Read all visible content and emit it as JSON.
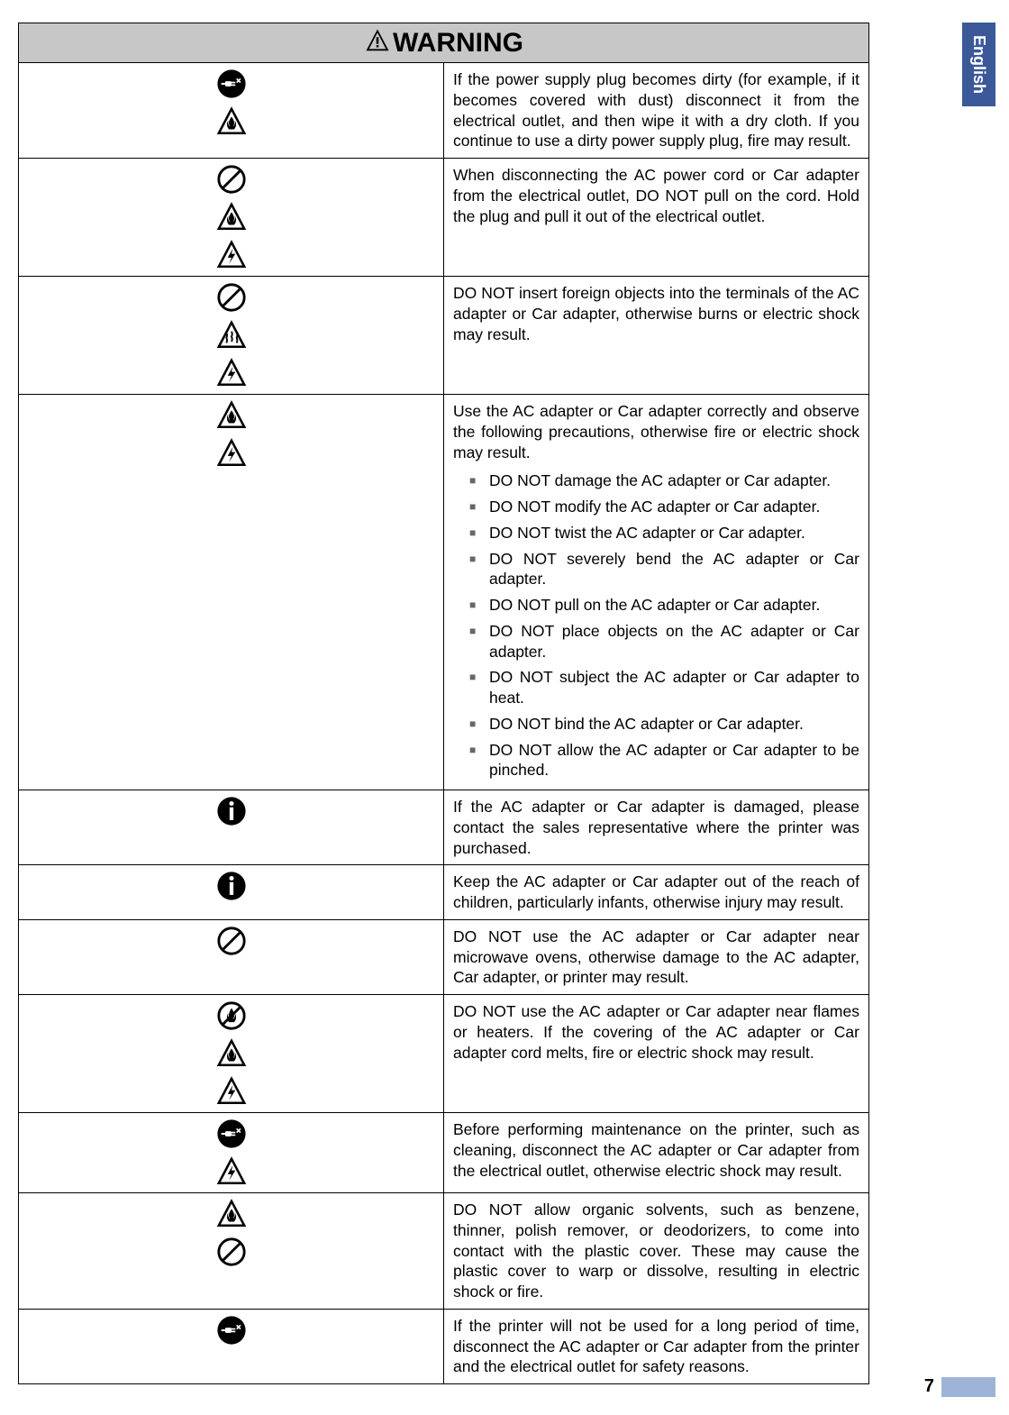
{
  "language": "English",
  "header": {
    "title": "WARNING"
  },
  "page_number": "7",
  "rows": [
    {
      "icons": [
        "unplug",
        "fire-tri"
      ],
      "text": "If the power supply plug becomes dirty (for example, if it becomes covered with dust) disconnect it from the electrical outlet, and then wipe it with a dry cloth. If you continue to use a dirty power supply plug, fire may result."
    },
    {
      "icons": [
        "prohibit",
        "fire-tri",
        "shock-tri"
      ],
      "text": "When disconnecting the AC power cord or Car adapter from the electrical outlet, DO NOT pull on the cord. Hold the plug and pull it out of the electrical outlet."
    },
    {
      "icons": [
        "prohibit",
        "heat-tri",
        "shock-tri"
      ],
      "text": "DO NOT insert foreign objects into the terminals of the AC adapter or Car adapter, otherwise burns or electric shock may result."
    },
    {
      "icons": [
        "fire-tri",
        "shock-tri"
      ],
      "text": "Use the AC adapter or Car adapter correctly and observe the following precautions, otherwise fire or electric shock may result.",
      "bullets": [
        "DO NOT damage the AC adapter or Car adapter.",
        "DO NOT modify the AC adapter or Car adapter.",
        "DO NOT twist the AC adapter or Car adapter.",
        "DO NOT severely bend the AC adapter or Car adapter.",
        "DO NOT pull on the AC adapter or Car adapter.",
        "DO NOT place objects on the AC adapter or Car adapter.",
        "DO NOT subject the AC adapter or Car adapter to heat.",
        "DO NOT bind the AC adapter or Car adapter.",
        "DO NOT allow the AC adapter or Car adapter to be pinched."
      ]
    },
    {
      "icons": [
        "mandatory"
      ],
      "text": "If the AC adapter or Car adapter is damaged, please contact the sales representative where the printer was purchased."
    },
    {
      "icons": [
        "mandatory"
      ],
      "text": "Keep the AC adapter or Car adapter out of the reach of children, particularly infants, otherwise injury may result."
    },
    {
      "icons": [
        "prohibit"
      ],
      "text": "DO NOT use the AC adapter or Car adapter near microwave ovens, otherwise damage to the AC adapter, Car adapter, or printer may result."
    },
    {
      "icons": [
        "no-flame",
        "fire-tri",
        "shock-tri"
      ],
      "text": "DO NOT use the AC adapter or Car adapter near flames or heaters. If the covering of the AC adapter or Car adapter cord melts, fire or electric shock may result."
    },
    {
      "icons": [
        "unplug",
        "shock-tri"
      ],
      "text": "Before performing maintenance on the printer, such as cleaning, disconnect the AC adapter or Car adapter from the electrical outlet, otherwise electric shock may result."
    },
    {
      "icons": [
        "fire-tri",
        "prohibit"
      ],
      "text": "DO NOT allow organic solvents, such as benzene, thinner, polish remover, or deodorizers, to come into contact with the plastic cover. These may cause the plastic cover to warp or dissolve, resulting in electric shock or fire."
    },
    {
      "icons": [
        "unplug"
      ],
      "text": "If the printer will not be used for a long period of time, disconnect the AC adapter or Car adapter from the printer and the electrical outlet for safety reasons."
    }
  ],
  "icon_svgs": {
    "warning-header": "<svg width='30' height='30' viewBox='0 0 24 24'><path d='M12 2 L22 21 L2 21 Z' fill='#000'/><path d='M12 5 L19.5 19.5 L4.5 19.5 Z' fill='#c7c7c7'/><rect x='11' y='9' width='2' height='6' fill='#000'/><rect x='11' y='16' width='2' height='2' fill='#000'/></svg>",
    "prohibit": "<svg width='34' height='34' viewBox='0 0 24 24'><circle cx='12' cy='12' r='10' fill='none' stroke='#000' stroke-width='2'/><line x1='5' y1='19' x2='19' y2='5' stroke='#000' stroke-width='2'/></svg>",
    "mandatory": "<svg width='34' height='34' viewBox='0 0 24 24'><circle cx='12' cy='12' r='11' fill='#000'/><rect x='10.5' y='9' width='3' height='10' fill='#fff'/><circle cx='12' cy='6' r='1.8' fill='#fff'/></svg>",
    "fire-tri": "<svg width='34' height='34' viewBox='0 0 24 24'><path d='M12 2 L22 21 L2 21 Z' fill='none' stroke='#000' stroke-width='1.8'/><path d='M12 8 C10 11 9 13 11 16 C9.5 15 9 13 9.5 11 C8 13 8 16 10 18 L14 18 C16 16 16 13 14.5 11 C15 13 14.5 15 13 16 C15 13 14 11 12 8 Z' fill='#000'/></svg>",
    "shock-tri": "<svg width='34' height='34' viewBox='0 0 24 24'><path d='M12 2 L22 21 L2 21 Z' fill='none' stroke='#000' stroke-width='1.8'/><path d='M13 7 L9 14 L12 14 L10 19 L15 11 L12 11 Z' fill='#000'/></svg>",
    "heat-tri": "<svg width='34' height='34' viewBox='0 0 24 24'><path d='M12 2 L22 21 L2 21 Z' fill='none' stroke='#000' stroke-width='1.8'/><path d='M8 10 Q9 12 8 14 Q9 16 8 18 M12 9 Q13 11 12 13 Q13 15 12 17 M16 10 Q17 12 16 14 Q17 16 16 18' fill='none' stroke='#000' stroke-width='1.3'/></svg>",
    "unplug": "<svg width='34' height='34' viewBox='0 0 24 24'><circle cx='12' cy='12' r='11' fill='#000'/><rect x='7' y='10' width='5' height='4' rx='1' fill='#fff'/><line x1='4' y1='12' x2='7' y2='12' stroke='#fff' stroke-width='1.5'/><line x1='12' y1='11' x2='15' y2='11' stroke='#fff' stroke-width='1.2'/><line x1='12' y1='13' x2='15' y2='13' stroke='#fff' stroke-width='1.2'/><path d='M16 8 L19 11 M19 8 L16 11' stroke='#fff' stroke-width='1.2'/></svg>",
    "no-flame": "<svg width='34' height='34' viewBox='0 0 24 24'><circle cx='12' cy='12' r='10' fill='none' stroke='#000' stroke-width='2'/><path d='M12 6 C10 9 9 12 11 15 C9.5 14 9 12 9.5 10 C8 12 8 15 10 17 L14 17 C16 15 16 12 14.5 10 C15 12 14.5 14 13 15 C15 12 14 9 12 6 Z' fill='#000'/><line x1='5' y1='19' x2='19' y2='5' stroke='#000' stroke-width='2'/></svg>"
  },
  "colors": {
    "header_bg": "#c7c7c7",
    "tab_bg": "#3b5998",
    "footer_tab": "#9db4d6"
  }
}
